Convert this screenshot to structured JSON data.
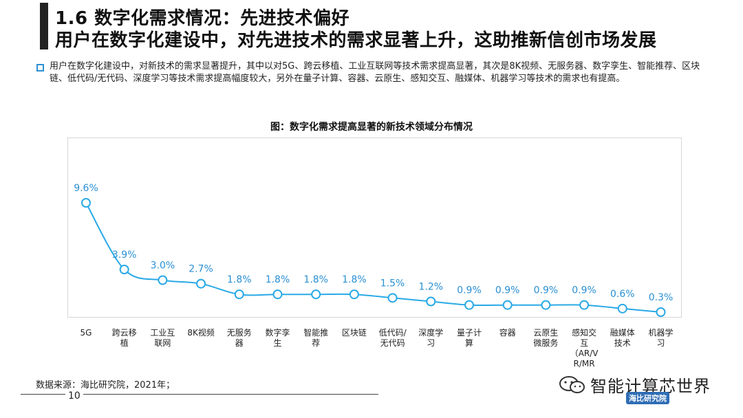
{
  "header": {
    "title_line1": "1.6 数字化需求情况：先进技术偏好",
    "title_line2": "用户在数字化建设中，对先进技术的需求显著上升，这助推新信创市场发展"
  },
  "bullet": {
    "text": "用户在数字化建设中，对新技术的需求显著提升，其中以对5G、跨云移植、工业互联网等技术需求提高显著，其次是8K视频、无服务器、数字孪生、智能推荐、区块链、低代码/无代码、深度学习等技术需求提高幅度较大，另外在量子计算、容器、云原生、感知交互、融媒体、机器学习等技术的需求也有提高。"
  },
  "chart_data": {
    "type": "line",
    "title": "图：数字化需求提高显著的新技术领域分布情况",
    "categories": [
      "5G",
      "跨云移植",
      "工业互联网",
      "8K视频",
      "无服务器",
      "数字孪生",
      "智能推荐",
      "区块链",
      "低代码/无代码",
      "深度学习",
      "量子计算",
      "容器",
      "云原生微服务",
      "感知交互（AR/VR/MR）",
      "融媒体技术",
      "机器学习"
    ],
    "category_lines": [
      [
        "5G"
      ],
      [
        "跨云移",
        "植"
      ],
      [
        "工业互",
        "联网"
      ],
      [
        "8K视频"
      ],
      [
        "无服务",
        "器"
      ],
      [
        "数字孪",
        "生"
      ],
      [
        "智能推",
        "荐"
      ],
      [
        "区块链"
      ],
      [
        "低代码/",
        "无代码"
      ],
      [
        "深度学",
        "习"
      ],
      [
        "量子计",
        "算"
      ],
      [
        "容器"
      ],
      [
        "云原生",
        "微服务"
      ],
      [
        "感知交",
        "互",
        "（AR/V",
        "R/MR"
      ],
      [
        "融媒体",
        "技术"
      ],
      [
        "机器学",
        "习"
      ]
    ],
    "values": [
      9.6,
      3.9,
      3.0,
      2.7,
      1.8,
      1.8,
      1.8,
      1.8,
      1.5,
      1.2,
      0.9,
      0.9,
      0.9,
      0.9,
      0.6,
      0.3
    ],
    "value_labels": [
      "9.6%",
      "3.9%",
      "3.0%",
      "2.7%",
      "1.8%",
      "1.8%",
      "1.8%",
      "1.8%",
      "1.5%",
      "1.2%",
      "0.9%",
      "0.9%",
      "0.9%",
      "0.9%",
      "0.6%",
      "0.3%"
    ],
    "ylim": [
      0,
      12
    ],
    "grid": false,
    "legend": "none",
    "line_color": "#29a9e6",
    "label_color": "#2a8fd3"
  },
  "footer": {
    "source": "数据来源：海比研究院，2021年；",
    "page_number": "10",
    "brand": "智能计算芯世界",
    "logo_text": "海比研究院"
  },
  "colors": {
    "accent": "#2d8fd5",
    "title_bar": "#222222"
  },
  "icons": [
    "wechat-icon"
  ]
}
